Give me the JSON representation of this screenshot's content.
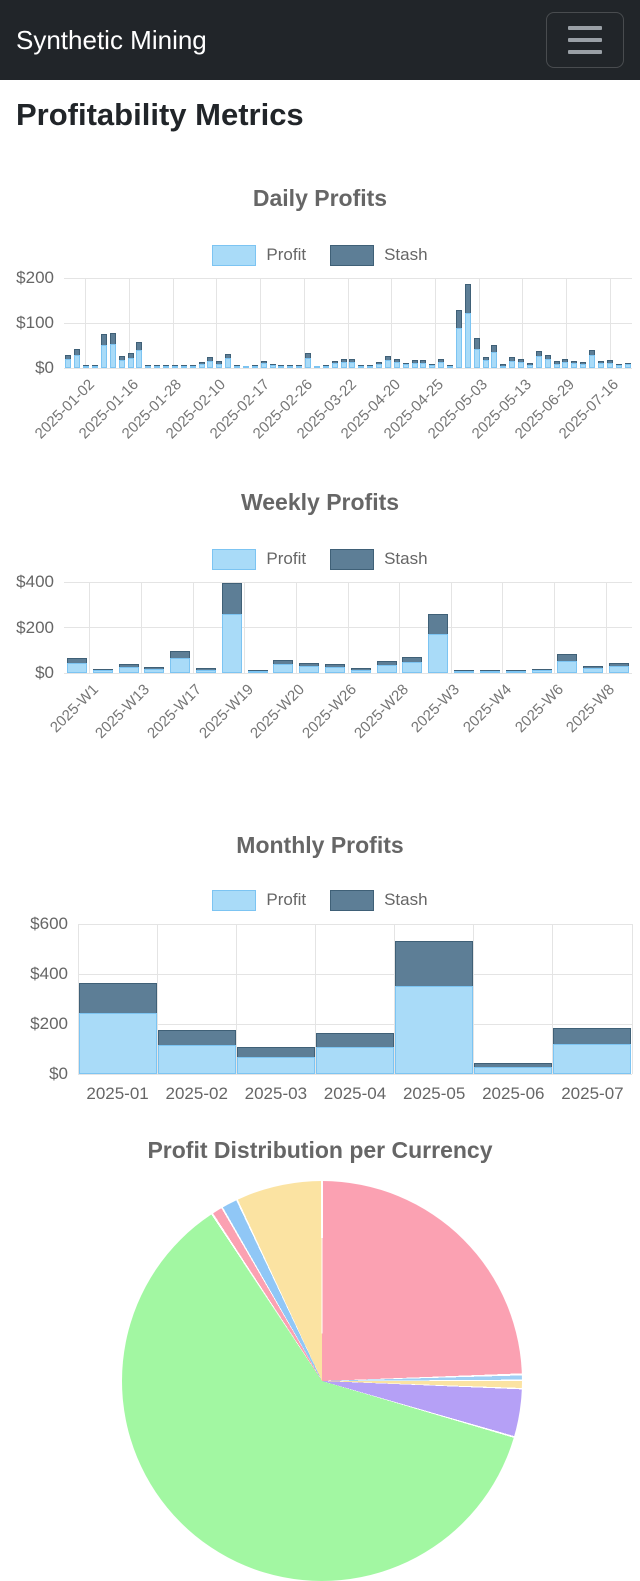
{
  "navbar": {
    "brand": "Synthetic Mining"
  },
  "page_title": "Profitability Metrics",
  "colors": {
    "navbar_bg": "#212529",
    "profit_fill": "#A9DBF8",
    "profit_border": "#7CC4F2",
    "stash_fill": "#5D7E96",
    "stash_border": "#3F6077",
    "grid": "#e4e4e4",
    "title_text": "#666666",
    "tick_text": "#757575"
  },
  "chart_data": [
    {
      "type": "bar",
      "name": "daily",
      "title": "Daily Profits",
      "stacked": true,
      "legend": [
        "Profit",
        "Stash"
      ],
      "ylabel": "",
      "ylim": [
        0,
        200
      ],
      "y_ticks": [
        {
          "label": "$0",
          "value": 0
        },
        {
          "label": "$100",
          "value": 100
        },
        {
          "label": "$200",
          "value": 200
        }
      ],
      "x_tick_labels": [
        "2025-01-02",
        "2025-01-16",
        "2025-01-28",
        "2025-02-10",
        "2025-02-17",
        "2025-02-26",
        "2025-03-22",
        "2025-04-20",
        "2025-04-25",
        "2025-05-03",
        "2025-05-13",
        "2025-06-29",
        "2025-07-16"
      ],
      "tick_mode": "center-rotated",
      "series": [
        {
          "name": "Profit",
          "values": [
            20,
            29,
            5,
            1,
            52,
            54,
            18,
            22,
            40,
            2,
            3,
            4,
            3,
            3,
            3,
            10,
            16,
            10,
            22,
            3,
            1,
            5,
            11,
            6,
            3,
            5,
            3,
            23,
            1,
            3,
            11,
            13,
            13,
            3,
            2,
            9,
            18,
            14,
            8,
            12,
            12,
            6,
            13,
            1,
            90,
            122,
            42,
            17,
            35,
            5,
            16,
            13,
            7,
            26,
            19,
            10,
            13,
            11,
            9,
            28,
            11,
            12,
            7,
            8
          ]
        },
        {
          "name": "Stash",
          "values": [
            10,
            14,
            2,
            1,
            23,
            24,
            8,
            11,
            18,
            1,
            2,
            2,
            1,
            1,
            2,
            4,
            8,
            5,
            10,
            2,
            0,
            2,
            5,
            3,
            1,
            2,
            1,
            11,
            0,
            1,
            5,
            7,
            6,
            2,
            1,
            4,
            8,
            7,
            4,
            6,
            6,
            3,
            7,
            1,
            40,
            65,
            25,
            8,
            17,
            3,
            8,
            6,
            4,
            12,
            9,
            5,
            7,
            5,
            5,
            13,
            5,
            6,
            3,
            4
          ]
        }
      ]
    },
    {
      "type": "bar",
      "name": "weekly",
      "title": "Weekly Profits",
      "stacked": true,
      "legend": [
        "Profit",
        "Stash"
      ],
      "ylabel": "",
      "ylim": [
        0,
        400
      ],
      "y_ticks": [
        {
          "label": "$0",
          "value": 0
        },
        {
          "label": "$200",
          "value": 200
        },
        {
          "label": "$400",
          "value": 400
        }
      ],
      "x_tick_labels": [
        "2025-W1",
        "2025-W13",
        "2025-W17",
        "2025-W19",
        "2025-W20",
        "2025-W26",
        "2025-W28",
        "2025-W3",
        "2025-W4",
        "2025-W6",
        "2025-W8"
      ],
      "tick_mode": "center-rotated",
      "series": [
        {
          "name": "Profit",
          "values": [
            45,
            13,
            28,
            17,
            65,
            14,
            260,
            2,
            40,
            30,
            28,
            15,
            35,
            48,
            170,
            7,
            10,
            2,
            13,
            55,
            22,
            30
          ]
        },
        {
          "name": "Stash",
          "values": [
            20,
            6,
            12,
            8,
            32,
            6,
            135,
            1,
            18,
            14,
            12,
            7,
            16,
            22,
            90,
            3,
            4,
            1,
            6,
            28,
            10,
            14
          ]
        }
      ]
    },
    {
      "type": "bar",
      "name": "monthly",
      "title": "Monthly Profits",
      "stacked": true,
      "legend": [
        "Profit",
        "Stash"
      ],
      "ylabel": "",
      "ylim": [
        0,
        600
      ],
      "y_ticks": [
        {
          "label": "$0",
          "value": 0
        },
        {
          "label": "$200",
          "value": 200
        },
        {
          "label": "$400",
          "value": 400
        },
        {
          "label": "$600",
          "value": 600
        }
      ],
      "x_tick_labels": [
        "2025-01",
        "2025-02",
        "2025-03",
        "2025-04",
        "2025-05",
        "2025-06",
        "2025-07"
      ],
      "tick_mode": "edge-flat",
      "series": [
        {
          "name": "Profit",
          "values": [
            245,
            118,
            70,
            110,
            352,
            30,
            122
          ]
        },
        {
          "name": "Stash",
          "values": [
            120,
            60,
            37,
            55,
            180,
            15,
            63
          ]
        }
      ]
    },
    {
      "type": "pie",
      "name": "currency-distribution",
      "title": "Profit Distribution per Currency",
      "note": "pie is clipped by the bottom edge of the viewport; only upper half visible; no segment labels shown",
      "border_color": "#ffffff",
      "segments": [
        {
          "label": "pink-large",
          "color": "#FBA1B2",
          "start_deg": 0.3,
          "end_deg": 87.8,
          "percent_est": 24.3
        },
        {
          "label": "blue-sliver-right",
          "color": "#9FCFF4",
          "start_deg": 88.4,
          "end_deg": 89.6,
          "percent_est": 0.3
        },
        {
          "label": "yellow-sliver-right",
          "color": "#FBE3A2",
          "start_deg": 90.0,
          "end_deg": 92.0,
          "percent_est": 0.6
        },
        {
          "label": "purple-sliver",
          "color": "#B5A0F6",
          "start_deg": 92.4,
          "end_deg": 106.0,
          "percent_est": 3.8
        },
        {
          "label": "green-large",
          "color": "#A2F7A2",
          "start_deg": 106.5,
          "end_deg": 326.4,
          "percent_est": 61.1
        },
        {
          "label": "pink-sliver-left",
          "color": "#FBA1B2",
          "start_deg": 327.0,
          "end_deg": 329.8,
          "percent_est": 0.8
        },
        {
          "label": "blue-sliver-left",
          "color": "#90C7F6",
          "start_deg": 330.3,
          "end_deg": 334.6,
          "percent_est": 1.2
        },
        {
          "label": "yellow-wedge-left",
          "color": "#FBE3A2",
          "start_deg": 335.1,
          "end_deg": 359.7,
          "percent_est": 6.8
        }
      ]
    }
  ]
}
